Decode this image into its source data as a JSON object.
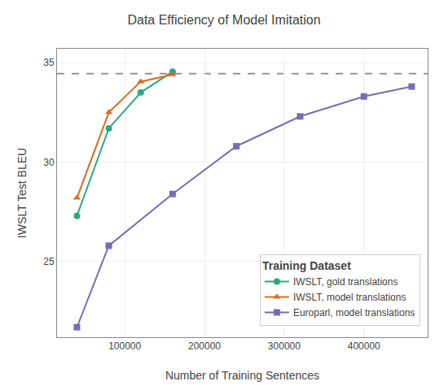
{
  "chart_data": {
    "type": "line",
    "title": "Data Efficiency of Model Imitation",
    "x_label": "Number of Training Sentences",
    "y_label": "IWSLT Test BLEU",
    "xlim": [
      15000,
      480000
    ],
    "ylim": [
      21.2,
      35.7
    ],
    "xticks": [
      100000,
      200000,
      300000,
      400000
    ],
    "yticks": [
      25,
      30,
      35
    ],
    "grid": true,
    "legend": "lower right",
    "legend_title": "Training Dataset",
    "series": [
      {
        "name": "IWSLT, gold translations",
        "color": "#2ca87f",
        "marker": "circle",
        "x": [
          40000,
          80000,
          120000,
          160000
        ],
        "values": [
          27.3,
          31.7,
          33.5,
          34.55
        ]
      },
      {
        "name": "IWSLT, model translations",
        "color": "#e06820",
        "marker": "triangle-up",
        "x": [
          40000,
          80000,
          120000,
          160000
        ],
        "values": [
          28.2,
          32.5,
          34.05,
          34.4
        ]
      },
      {
        "name": "Europarl, model translations",
        "color": "#7b6bb5",
        "marker": "square",
        "x": [
          40000,
          80000,
          160000,
          240000,
          320000,
          400000,
          460000
        ],
        "values": [
          21.7,
          25.8,
          28.4,
          30.8,
          32.3,
          33.3,
          33.8
        ]
      }
    ],
    "baseline": {
      "value": 34.45,
      "color": "#888888",
      "line_style": "dash"
    }
  }
}
